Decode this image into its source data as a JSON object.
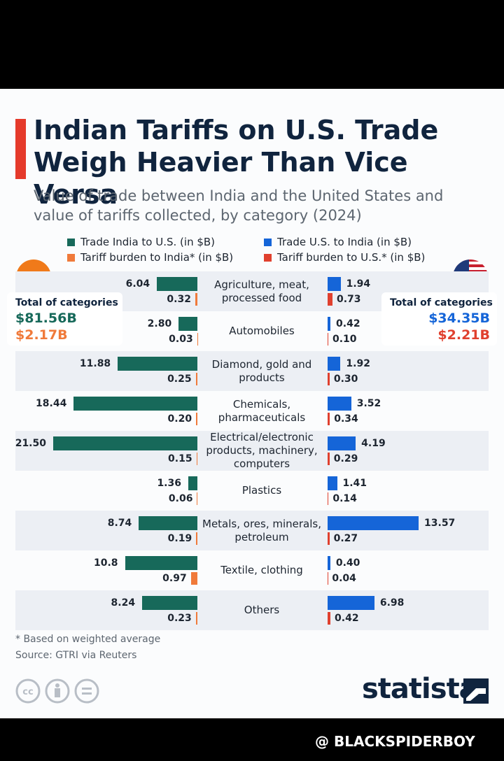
{
  "chart_data": {
    "type": "bar",
    "title": "Indian Tariffs on U.S. Trade Weigh Heavier Than Vice Versa",
    "subtitle": "Value of trade between India and the United States and value of tariffs collected, by category (2024)",
    "categories": [
      "Agriculture, meat, processed food",
      "Automobiles",
      "Diamond, gold and products",
      "Chemicals, pharmaceuticals",
      "Electrical/electronic products, machinery, computers",
      "Plastics",
      "Metals, ores, minerals, petroleum",
      "Textile, clothing",
      "Others"
    ],
    "series": [
      {
        "name": "Trade India to U.S. (in $B)",
        "color": "#17695a",
        "side": "left",
        "values": [
          6.04,
          2.8,
          11.88,
          18.44,
          21.5,
          1.36,
          8.74,
          10.8,
          8.24
        ],
        "value_labels": [
          "6.04",
          "2.80",
          "11.88",
          "18.44",
          "21.50",
          "1.36",
          "8.74",
          "10.8",
          "8.24"
        ]
      },
      {
        "name": "Tariff burden to India* (in $B)",
        "color": "#f07a3a",
        "side": "left",
        "values": [
          0.32,
          0.03,
          0.25,
          0.2,
          0.15,
          0.06,
          0.19,
          0.97,
          0.23
        ],
        "value_labels": [
          "0.32",
          "0.03",
          "0.25",
          "0.20",
          "0.15",
          "0.06",
          "0.19",
          "0.97",
          "0.23"
        ]
      },
      {
        "name": "Trade U.S. to India (in $B)",
        "color": "#1565d8",
        "side": "right",
        "values": [
          1.94,
          0.42,
          1.92,
          3.52,
          4.19,
          1.41,
          13.57,
          0.4,
          6.98
        ],
        "value_labels": [
          "1.94",
          "0.42",
          "1.92",
          "3.52",
          "4.19",
          "1.41",
          "13.57",
          "0.40",
          "6.98"
        ]
      },
      {
        "name": "Tariff burden to U.S.* (in $B)",
        "color": "#e0402e",
        "side": "right",
        "values": [
          0.73,
          0.1,
          0.3,
          0.34,
          0.29,
          0.14,
          0.27,
          0.04,
          0.42
        ],
        "value_labels": [
          "0.73",
          "0.10",
          "0.30",
          "0.34",
          "0.29",
          "0.14",
          "0.27",
          "0.04",
          "0.42"
        ]
      }
    ],
    "totals": [
      {
        "label": "Total of  categories",
        "trade": "$81.56B",
        "tariff": "$2.17B"
      },
      {
        "label": "Total of  categories",
        "trade": "$34.35B",
        "tariff": "$2.21B"
      }
    ],
    "footnote": "* Based on weighted average",
    "source": "Source: GTRI via Reuters",
    "logo": "statista",
    "watermark": "@ BLACKSPIDERBOY"
  }
}
